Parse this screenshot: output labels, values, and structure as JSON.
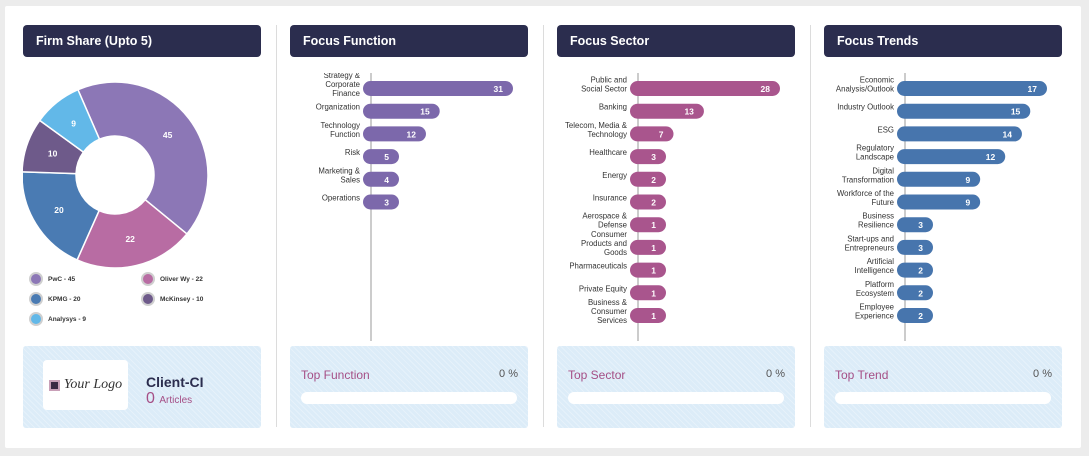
{
  "panels": {
    "firm": {
      "title": "Firm Share (Upto 5)"
    },
    "function": {
      "title": "Focus Function",
      "top_label": "Top Function",
      "top_pct": "0 %"
    },
    "sector": {
      "title": "Focus Sector",
      "top_label": "Top Sector",
      "top_pct": "0 %"
    },
    "trends": {
      "title": "Focus Trends",
      "top_label": "Top Trend",
      "top_pct": "0 %"
    }
  },
  "client": {
    "logo_text": "Your Logo",
    "name": "Client-CI",
    "articles_count": "0",
    "articles_label": "Articles"
  },
  "chart_data": [
    {
      "type": "pie",
      "title": "Firm Share (Upto 5)",
      "categories": [
        "PwC",
        "Oliver Wy",
        "KPMG",
        "McKinsey",
        "Analysys"
      ],
      "values": [
        45,
        22,
        20,
        10,
        9
      ],
      "colors": [
        "#8c77b6",
        "#b86ca3",
        "#4a7bb3",
        "#6e5a8a",
        "#62b8e8"
      ],
      "legend": [
        "PwC - 45",
        "Oliver Wy - 22",
        "KPMG - 20",
        "McKinsey - 10",
        "Analysys - 9"
      ]
    },
    {
      "type": "bar",
      "title": "Focus Function",
      "color": "#7c68ab",
      "categories": [
        "Strategy & Corporate Finance",
        "Organization",
        "Technology Function",
        "Risk",
        "Marketing & Sales",
        "Operations"
      ],
      "values": [
        31,
        15,
        12,
        5,
        4,
        3
      ]
    },
    {
      "type": "bar",
      "title": "Focus Sector",
      "color": "#a9558d",
      "categories": [
        "Public and Social Sector",
        "Banking",
        "Telecom, Media & Technology",
        "Healthcare",
        "Energy",
        "Insurance",
        "Aerospace & Defense",
        "Consumer Products and Goods",
        "Pharmaceuticals",
        "Private Equity",
        "Business & Consumer Services"
      ],
      "values": [
        28,
        13,
        7,
        3,
        2,
        2,
        1,
        1,
        1,
        1,
        1
      ]
    },
    {
      "type": "bar",
      "title": "Focus Trends",
      "color": "#4775ad",
      "categories": [
        "Economic Analysis/Outlook",
        "Industry Outlook",
        "ESG",
        "Regulatory Landscape",
        "Digital Transformation",
        "Workforce of the Future",
        "Business Resilience",
        "Start-ups and Entrepreneurs",
        "Artificial Intelligence",
        "Platform Ecosystem",
        "Employee Experience"
      ],
      "values": [
        17,
        15,
        14,
        12,
        9,
        9,
        3,
        3,
        2,
        2,
        2
      ]
    }
  ]
}
